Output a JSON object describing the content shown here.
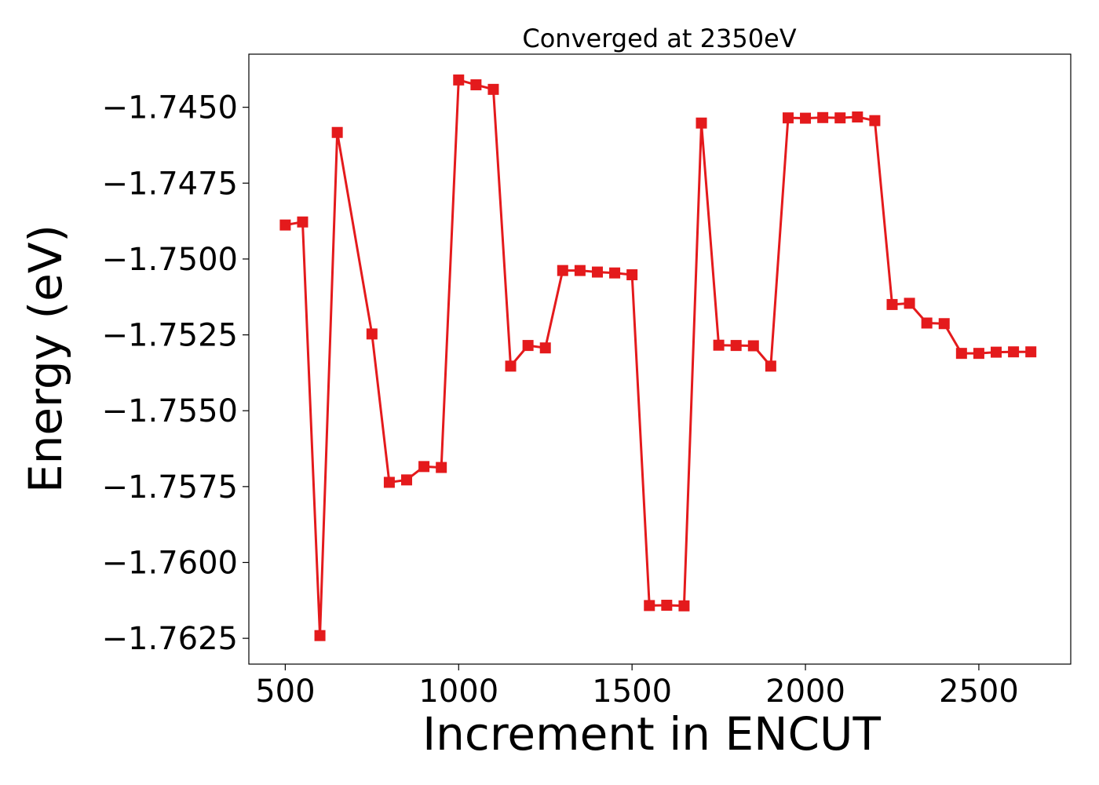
{
  "chart_data": {
    "type": "line",
    "title": "Converged at 2350eV",
    "xlabel": "Increment in ENCUT",
    "ylabel": "Energy (eV)",
    "xlim": [
      395,
      2765
    ],
    "ylim": [
      -1.76335,
      -1.74325
    ],
    "x_ticks": [
      500,
      1000,
      1500,
      2000,
      2500
    ],
    "x_tick_labels": [
      "500",
      "1000",
      "1500",
      "2000",
      "2500"
    ],
    "y_ticks": [
      -1.745,
      -1.7475,
      -1.75,
      -1.7525,
      -1.755,
      -1.7575,
      -1.76,
      -1.7625
    ],
    "y_tick_labels": [
      "−1.7450",
      "−1.7475",
      "−1.7500",
      "−1.7525",
      "−1.7550",
      "−1.7575",
      "−1.7600",
      "−1.7625"
    ],
    "grid": false,
    "legend": "none",
    "marker": "square",
    "color": "#e41a1c",
    "series": [
      {
        "x": [
          500,
          550,
          600,
          650,
          750,
          800,
          850,
          900,
          950,
          1000,
          1050,
          1100,
          1150,
          1200,
          1250,
          1300,
          1350,
          1400,
          1450,
          1500,
          1550,
          1600,
          1650,
          1700,
          1750,
          1800,
          1850,
          1900,
          1950,
          2000,
          2050,
          2100,
          2150,
          2200,
          2250,
          2300,
          2350,
          2400,
          2450,
          2500,
          2550,
          2600,
          2650
        ],
        "values": [
          -1.74888,
          -1.74878,
          -1.76241,
          -1.74583,
          -1.75247,
          -1.75736,
          -1.75728,
          -1.75684,
          -1.75687,
          -1.7441,
          -1.74426,
          -1.74441,
          -1.75353,
          -1.75285,
          -1.75293,
          -1.75038,
          -1.75038,
          -1.75043,
          -1.75046,
          -1.75052,
          -1.76142,
          -1.76141,
          -1.76143,
          -1.74552,
          -1.75284,
          -1.75285,
          -1.75286,
          -1.75353,
          -1.74535,
          -1.74536,
          -1.74534,
          -1.74535,
          -1.74532,
          -1.74544,
          -1.7515,
          -1.75146,
          -1.75211,
          -1.75213,
          -1.75311,
          -1.75311,
          -1.75307,
          -1.75306,
          -1.75306
        ]
      }
    ]
  }
}
